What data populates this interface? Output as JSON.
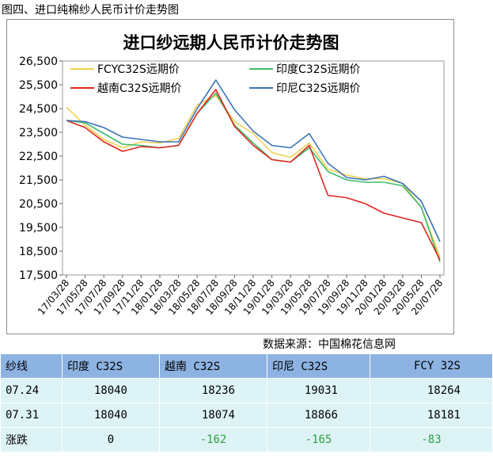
{
  "caption": "图四、进口纯棉纱人民币计价走势图",
  "source": "数据来源：中国棉花信息网",
  "chart_data": {
    "type": "line",
    "title": "进口纱远期人民币计价走势图",
    "ylim": [
      17500,
      26500
    ],
    "yticks": [
      "26,500",
      "25,500",
      "24,500",
      "23,500",
      "22,500",
      "21,500",
      "20,500",
      "19,500",
      "18,500",
      "17,500"
    ],
    "ytick_values": [
      26500,
      25500,
      24500,
      23500,
      22500,
      21500,
      20500,
      19500,
      18500,
      17500
    ],
    "xtick_labels": [
      "17/03/28",
      "17/05/28",
      "17/07/28",
      "17/09/28",
      "17/11/28",
      "18/01/28",
      "18/03/28",
      "18/05/28",
      "18/07/28",
      "18/09/28",
      "18/11/28",
      "19/01/28",
      "19/03/28",
      "19/05/28",
      "19/07/28",
      "19/09/28",
      "19/11/28",
      "20/01/28",
      "20/03/28",
      "20/05/28",
      "20/07/28"
    ],
    "legend_placement": "top",
    "series": [
      {
        "name": "FCYC32S远期价",
        "color": "#f2d24b",
        "values": [
          24550,
          23800,
          23200,
          22850,
          23100,
          23050,
          23250,
          24650,
          25050,
          23950,
          23450,
          22650,
          22450,
          23050,
          21950,
          21700,
          21550,
          21550,
          21350,
          20350,
          18240
        ]
      },
      {
        "name": "印度C32S远期价",
        "color": "#3dbb6c",
        "values": [
          24000,
          23900,
          23450,
          23000,
          22950,
          22850,
          22950,
          24300,
          25150,
          23800,
          23050,
          22350,
          22250,
          22850,
          21850,
          21500,
          21400,
          21400,
          21250,
          20350,
          18040
        ]
      },
      {
        "name": "越南C32S远期价",
        "color": "#e0261e",
        "values": [
          24000,
          23700,
          23100,
          22700,
          22900,
          22850,
          22950,
          24300,
          25300,
          23750,
          22950,
          22350,
          22250,
          22950,
          20850,
          20750,
          20500,
          20100,
          19900,
          19700,
          18130
        ]
      },
      {
        "name": "印尼C32S远期价",
        "color": "#3a73b8",
        "values": [
          24000,
          23950,
          23700,
          23300,
          23200,
          23100,
          23100,
          24500,
          25700,
          24450,
          23550,
          22950,
          22850,
          23450,
          22200,
          21600,
          21500,
          21650,
          21350,
          20600,
          18900
        ]
      }
    ]
  },
  "table": {
    "headers": [
      "纱线",
      "印度 C32S",
      "越南 C32S",
      "印尼 C32S",
      "FCY 32S"
    ],
    "rows": [
      {
        "label": "07.24",
        "values": [
          "18040",
          "18236",
          "19031",
          "18264"
        ]
      },
      {
        "label": "07.31",
        "values": [
          "18040",
          "18074",
          "18866",
          "18181"
        ]
      },
      {
        "label": "涨跌",
        "values": [
          "0",
          "-162",
          "-165",
          "-83"
        ]
      }
    ],
    "change_color": "#2e9e3e"
  }
}
